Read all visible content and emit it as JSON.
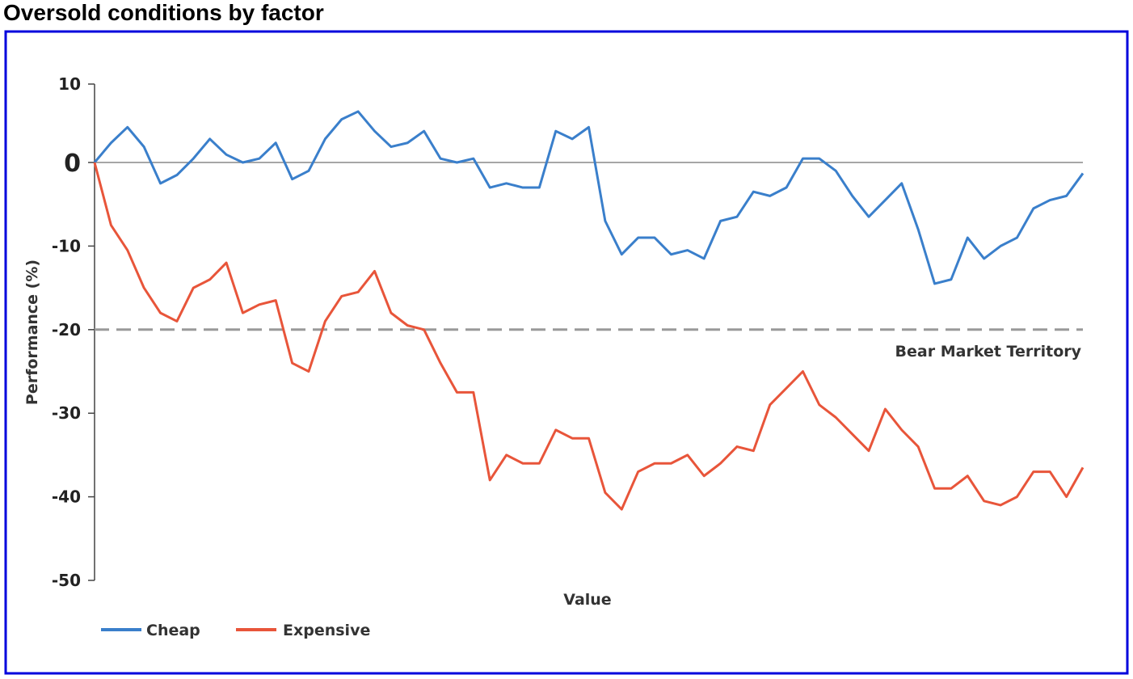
{
  "chart_data": {
    "type": "line",
    "title": "Oversold conditions by factor",
    "xlabel": "Value",
    "ylabel": "Performance (%)",
    "ylim": [
      -50,
      10
    ],
    "yticks": [
      "10",
      "0",
      "-10",
      "-20",
      "-30",
      "-40",
      "-50"
    ],
    "ytick_values": [
      10,
      0,
      -10,
      -20,
      -30,
      -40,
      -50
    ],
    "reference_line": {
      "value": -20,
      "label": "Bear Market Territory",
      "style": "dashed"
    },
    "zero_line": 0,
    "legend_position": "bottom-left",
    "colors": {
      "Cheap": "#3a7fcb",
      "Expensive": "#e8553a",
      "zero_label": "#e8553a",
      "frame": "#0000dd",
      "reference": "#999999"
    },
    "x": [
      0,
      1,
      2,
      3,
      4,
      5,
      6,
      7,
      8,
      9,
      10,
      11,
      12,
      13,
      14,
      15,
      16,
      17,
      18,
      19,
      20,
      21,
      22,
      23,
      24,
      25,
      26,
      27,
      28,
      29,
      30,
      31,
      32,
      33,
      34,
      35,
      36,
      37,
      38,
      39,
      40,
      41,
      42,
      43,
      44,
      45,
      46,
      47,
      48,
      49,
      50,
      51,
      52,
      53,
      54,
      55,
      56,
      57,
      58,
      59,
      60
    ],
    "series": [
      {
        "name": "Cheap",
        "values": [
          0,
          2.5,
          4.5,
          2,
          -2.5,
          -1.5,
          0.5,
          3,
          1,
          0,
          0.5,
          2.5,
          -2,
          -1,
          3,
          5.5,
          6.5,
          4,
          2,
          2.5,
          4,
          0.5,
          0,
          0.5,
          -3,
          -2.5,
          -3,
          -3,
          4,
          3,
          4.5,
          -7,
          -11,
          -9,
          -9,
          -11,
          -10.5,
          -11.5,
          -7,
          -6.5,
          -3.5,
          -4,
          -3,
          0.5,
          0.5,
          -1,
          -4,
          -6.5,
          -4.5,
          -2.5,
          -8,
          -14.5,
          -14,
          -9,
          -11.5,
          -10,
          -9,
          -5.5,
          -4.5,
          -4,
          -1.3
        ]
      },
      {
        "name": "Expensive",
        "values": [
          0,
          -7.5,
          -10.5,
          -15,
          -18,
          -19,
          -15,
          -14,
          -12,
          -18,
          -17,
          -16.5,
          -24,
          -25,
          -19,
          -16,
          -15.5,
          -13,
          -18,
          -19.5,
          -20,
          -24,
          -27.5,
          -27.5,
          -38,
          -35,
          -36,
          -36,
          -32,
          -33,
          -33,
          -39.5,
          -41.5,
          -37,
          -36,
          -36,
          -35,
          -37.5,
          -36,
          -34,
          -34.5,
          -29,
          -27,
          -25,
          -29,
          -30.5,
          -32.5,
          -34.5,
          -29.5,
          -32,
          -34,
          -39,
          -39,
          -37.5,
          -40.5,
          -41,
          -40,
          -37,
          -37,
          -40,
          -36.5
        ]
      }
    ]
  }
}
